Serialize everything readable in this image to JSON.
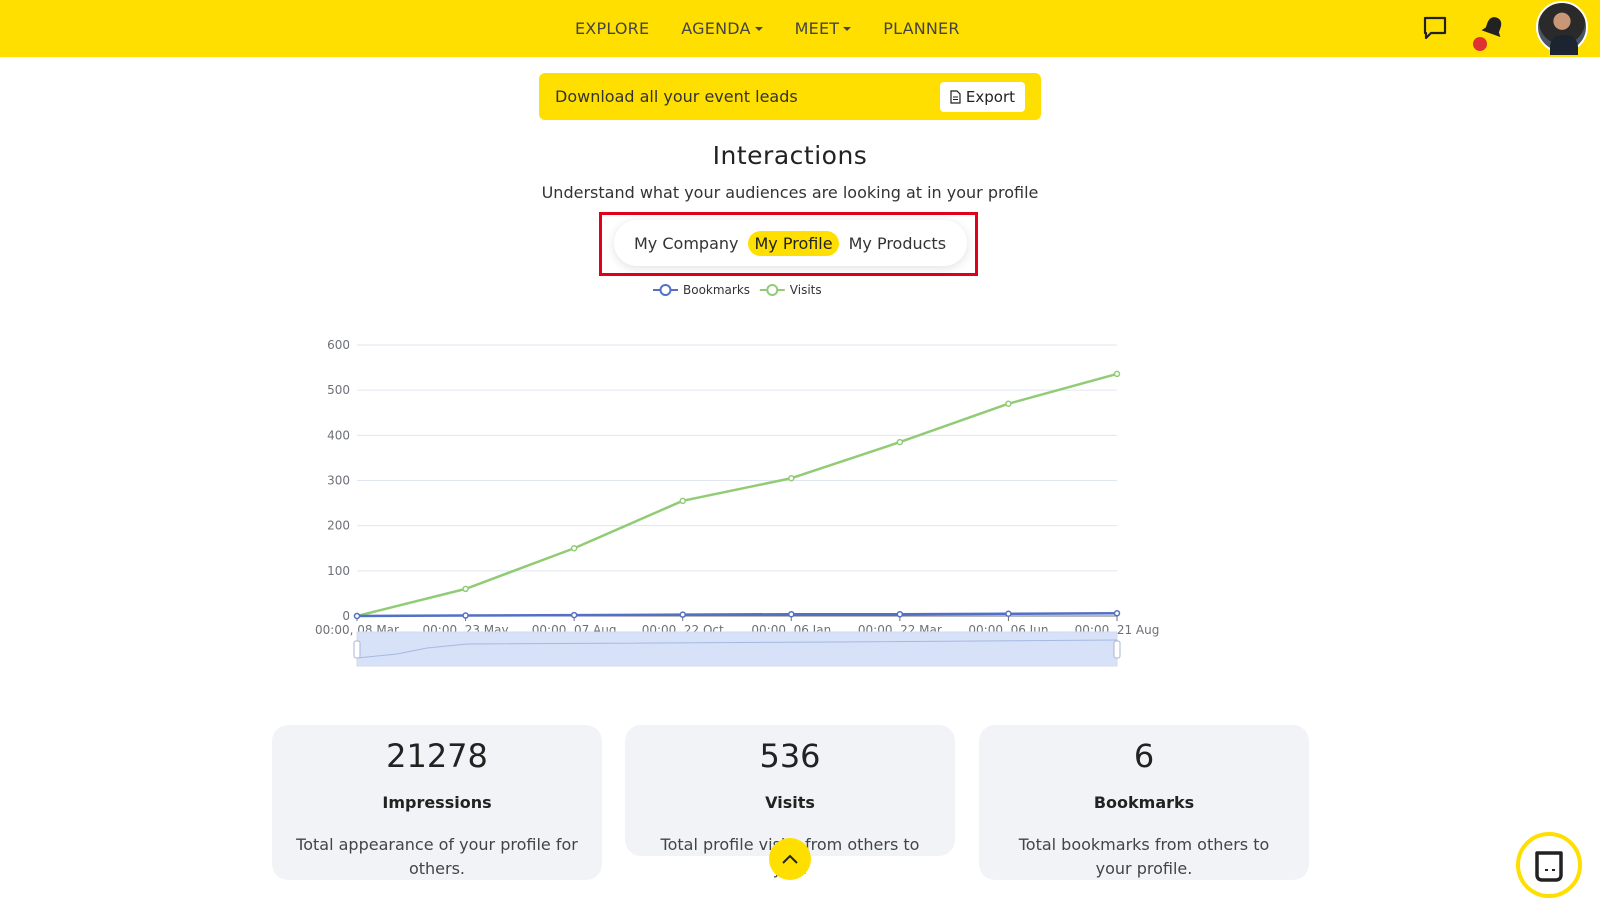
{
  "nav": {
    "items": [
      {
        "label": "EXPLORE",
        "caret": false
      },
      {
        "label": "AGENDA",
        "caret": true
      },
      {
        "label": "MEET",
        "caret": true
      },
      {
        "label": "PLANNER",
        "caret": false
      }
    ]
  },
  "icons": {
    "chat": "chat-bubble-icon",
    "bell": "bell-icon",
    "scroll": "chevron-up-icon",
    "widget": "chat-widget-icon"
  },
  "banner": {
    "text": "Download all your event leads",
    "export_label": "Export"
  },
  "page": {
    "title": "Interactions",
    "subtitle": "Understand what your audiences are looking at in your profile"
  },
  "tabs": [
    {
      "label": "My Company",
      "active": false
    },
    {
      "label": "My Profile",
      "active": true
    },
    {
      "label": "My Products",
      "active": false
    }
  ],
  "chart_data": {
    "type": "line",
    "title": "",
    "xlabel": "",
    "ylabel": "",
    "ylim": [
      0,
      600
    ],
    "yticks": [
      0,
      100,
      200,
      300,
      400,
      500,
      600
    ],
    "xticks": [
      "00:00, 08 Mar",
      "00:00, 23 May",
      "00:00, 07 Aug",
      "00:00, 22 Oct",
      "00:00, 06 Jan",
      "00:00, 22 Mar",
      "00:00, 06 Jun",
      "00:00, 21 Aug"
    ],
    "grid": true,
    "legend_position": "top-center",
    "series": [
      {
        "name": "Bookmarks",
        "color": "#5470c6",
        "values": [
          0,
          1,
          2,
          3,
          4,
          4,
          5,
          6
        ]
      },
      {
        "name": "Visits",
        "color": "#91cc75",
        "values": [
          0,
          60,
          150,
          255,
          305,
          385,
          470,
          536
        ]
      }
    ],
    "data_zoom": {
      "start": 0,
      "end": 100
    }
  },
  "stats": [
    {
      "value": "21278",
      "label": "Impressions",
      "desc": "Total appearance of your profile for others."
    },
    {
      "value": "536",
      "label": "Visits",
      "desc": "Total profile visits from others to you."
    },
    {
      "value": "6",
      "label": "Bookmarks",
      "desc": "Total bookmarks from others to your profile."
    }
  ],
  "colors": {
    "brand": "#ffdf00",
    "highlight": "#e0001b",
    "bookmarks": "#5470c6",
    "visits": "#91cc75"
  }
}
